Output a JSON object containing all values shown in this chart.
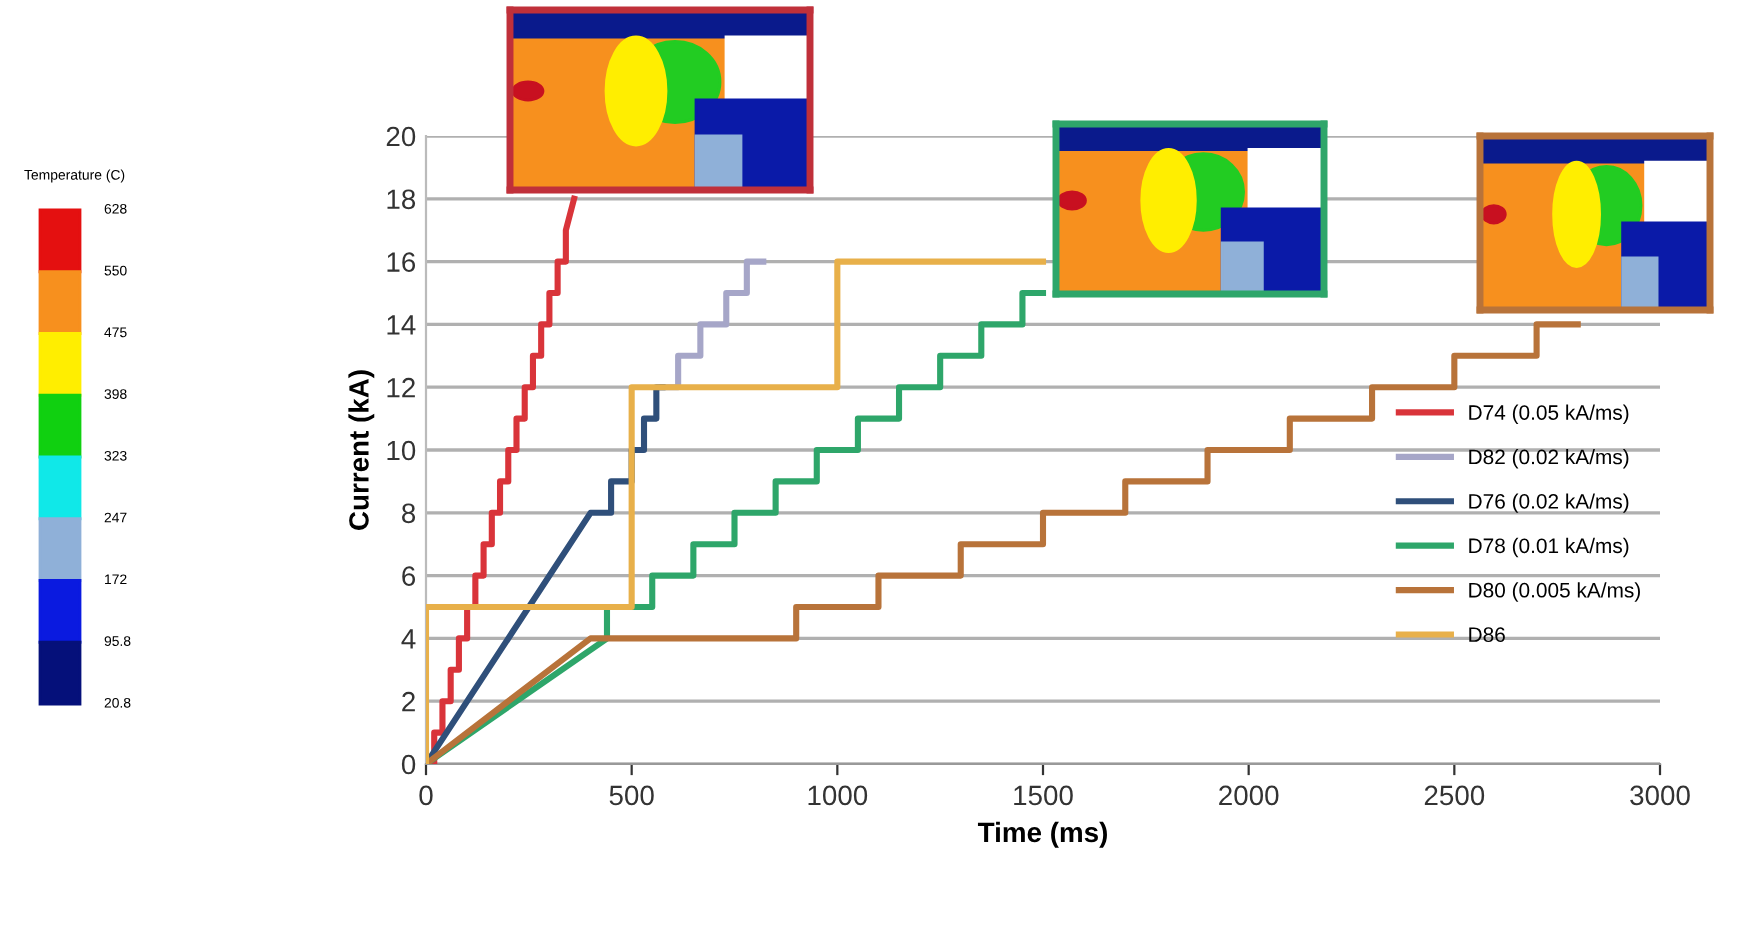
{
  "chart_data": {
    "type": "line",
    "xlabel": "Time (ms)",
    "ylabel": "Current (kA)",
    "xlim": [
      0,
      3000
    ],
    "xticks": [
      0,
      500,
      1000,
      1500,
      2000,
      2500,
      3000
    ],
    "ylim": [
      0,
      20
    ],
    "yticks": [
      0,
      2,
      4,
      6,
      8,
      10,
      12,
      14,
      16,
      18,
      20
    ],
    "grid": "y",
    "legend": "right",
    "marker": "none",
    "line_style": "solid",
    "series": [
      {
        "name": "D74 (0.05 kA/ms)",
        "color": "#d9343a",
        "x": [
          0,
          20,
          20,
          40,
          40,
          60,
          60,
          80,
          80,
          100,
          100,
          120,
          120,
          140,
          140,
          160,
          160,
          180,
          180,
          200,
          200,
          220,
          220,
          240,
          240,
          260,
          260,
          280,
          280,
          300,
          300,
          320,
          320,
          340,
          340,
          360
        ],
        "values": [
          0,
          0,
          1,
          1,
          2,
          2,
          3,
          3,
          4,
          4,
          5,
          5,
          6,
          6,
          7,
          7,
          8,
          8,
          9,
          9,
          10,
          10,
          11,
          11,
          12,
          12,
          13,
          13,
          14,
          14,
          15,
          15,
          16,
          16,
          17,
          18
        ]
      },
      {
        "name": "D82 (0.02 kA/ms)",
        "color": "#a6a6c8",
        "x": [
          575,
          613,
          613,
          667,
          667,
          730,
          730,
          780,
          780,
          820
        ],
        "values": [
          12,
          12,
          13,
          13,
          14,
          14,
          15,
          15,
          16,
          16
        ]
      },
      {
        "name": "D76 (0.02 kA/ms)",
        "color": "#2f4f7a",
        "x": [
          0,
          400,
          450,
          450,
          500,
          500,
          530,
          530,
          560,
          560,
          575
        ],
        "values": [
          0,
          8,
          8,
          9,
          9,
          10,
          10,
          11,
          11,
          12,
          12
        ]
      },
      {
        "name": "D78 (0.01 kA/ms)",
        "color": "#2ea66a",
        "x": [
          0,
          440,
          440,
          550,
          550,
          650,
          650,
          750,
          750,
          850,
          850,
          950,
          950,
          1050,
          1050,
          1150,
          1150,
          1250,
          1250,
          1350,
          1350,
          1450,
          1450,
          1500
        ],
        "values": [
          0,
          4,
          5,
          5,
          6,
          6,
          7,
          7,
          8,
          8,
          9,
          9,
          10,
          10,
          11,
          11,
          12,
          12,
          13,
          13,
          14,
          14,
          15,
          15
        ]
      },
      {
        "name": "D80 (0.005 kA/ms)",
        "color": "#b8733a",
        "x": [
          0,
          400,
          900,
          900,
          1100,
          1100,
          1300,
          1300,
          1500,
          1500,
          1700,
          1700,
          1900,
          1900,
          2100,
          2100,
          2300,
          2300,
          2500,
          2500,
          2700,
          2700,
          2800
        ],
        "values": [
          0,
          4,
          4,
          5,
          5,
          6,
          6,
          7,
          7,
          8,
          8,
          9,
          9,
          10,
          10,
          11,
          11,
          12,
          12,
          13,
          13,
          14,
          14
        ]
      },
      {
        "name": "D86",
        "color": "#e8b04a",
        "x": [
          0,
          0,
          500,
          500,
          1000,
          1000,
          1500
        ],
        "values": [
          0,
          5,
          5,
          12,
          12,
          16,
          16
        ]
      }
    ],
    "annotations": [
      "Temperature (C)",
      "628",
      "550",
      "475",
      "398",
      "323",
      "247",
      "172",
      "95.8",
      "20.8"
    ]
  }
}
